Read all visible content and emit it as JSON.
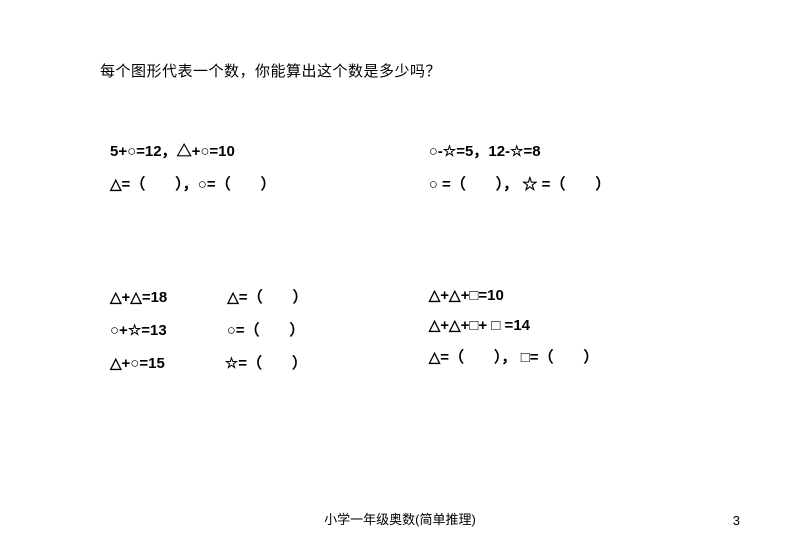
{
  "question": "每个图形代表一个数，你能算出这个数是多少吗？",
  "problems": {
    "p1": {
      "l1": "5+○=12，△+○=10",
      "l2": "△=（　　），○=（　　）"
    },
    "p2": {
      "l1": "○-☆=5，12-☆=8",
      "l2": "○ =（　　）， ☆ =（　　）"
    },
    "p3": {
      "l1": "△+△=18　　　　△=（　　）",
      "l2": "○+☆=13　　　　○=（　　）",
      "l3": "△+○=15　　　　☆=（　　）"
    },
    "p4": {
      "l1": "△+△+□=10",
      "l2": "△+△+□+ □ =14",
      "l3": "△=（　　）， □=（　　）"
    }
  },
  "footer": "小学一年级奥数(简单推理)",
  "page_number": "3"
}
